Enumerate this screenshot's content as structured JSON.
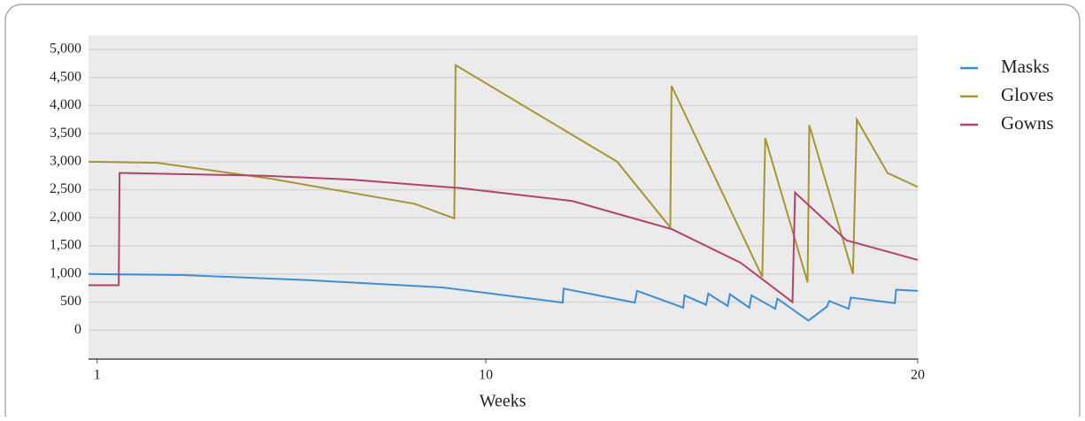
{
  "chart_data": {
    "type": "line",
    "x_label": "Weeks",
    "xlim": [
      0.8,
      20
    ],
    "xticks": [
      1,
      10,
      20
    ],
    "ylim": [
      -500,
      5250
    ],
    "yticks": [
      0,
      500,
      {
        "value": 1000,
        "label": "1,000"
      },
      {
        "value": 1500,
        "label": "1,500"
      },
      {
        "value": 2000,
        "label": "2,000"
      },
      {
        "value": 2500,
        "label": "2,500"
      },
      {
        "value": 3000,
        "label": "3,000"
      },
      {
        "value": 3500,
        "label": "3,500"
      },
      {
        "value": 4000,
        "label": "4,000"
      },
      {
        "value": 4500,
        "label": "4,500"
      },
      {
        "value": 5000,
        "label": "5,000"
      }
    ],
    "grid": true,
    "legend": "right",
    "series": [
      {
        "name": "Masks",
        "color": "#3b8fd6",
        "x": [
          0.8,
          3,
          5.9,
          9,
          11.78,
          11.8,
          13.45,
          13.5,
          14.57,
          14.6,
          15.1,
          15.15,
          15.6,
          15.65,
          16.1,
          16.15,
          16.7,
          16.75,
          17.47,
          17.9,
          17.95,
          18.4,
          18.45,
          19.47,
          19.5,
          20
        ],
        "values": [
          1000,
          980,
          890,
          760,
          490,
          740,
          490,
          700,
          400,
          620,
          450,
          650,
          430,
          640,
          400,
          620,
          380,
          560,
          170,
          420,
          520,
          380,
          580,
          480,
          720,
          700
        ]
      },
      {
        "name": "Gloves",
        "color": "#a69632",
        "x": [
          0.8,
          2.4,
          5,
          8.35,
          9.27,
          9.3,
          13.04,
          14.27,
          14.3,
          16.4,
          16.47,
          17.45,
          17.49,
          18.5,
          18.59,
          19.3,
          20
        ],
        "values": [
          3000,
          2980,
          2700,
          2250,
          1990,
          4720,
          3000,
          1830,
          4350,
          950,
          3420,
          850,
          3650,
          1000,
          3750,
          2800,
          2550
        ]
      },
      {
        "name": "Gowns",
        "color": "#b5406e",
        "x": [
          0.8,
          1.5,
          1.52,
          4.9,
          6.9,
          9.4,
          12,
          14.3,
          15.9,
          17.1,
          17.16,
          18.35,
          20
        ],
        "values": [
          800,
          800,
          2800,
          2750,
          2680,
          2530,
          2300,
          1800,
          1200,
          500,
          2450,
          1600,
          1250
        ]
      }
    ]
  }
}
